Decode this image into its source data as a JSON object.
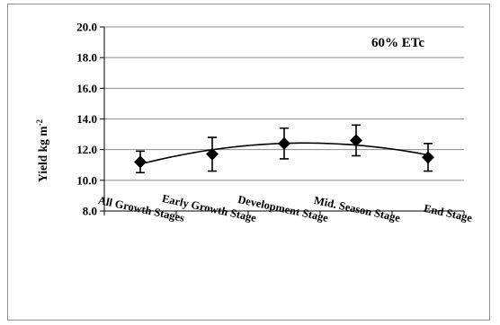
{
  "chart_data": {
    "type": "line",
    "title": "",
    "annotation": "60% ETc",
    "ylabel_main": "Yield kg m",
    "ylabel_sup": "-2",
    "xlabel": "",
    "categories": [
      "All Growth Stages",
      "Early Growth Stage",
      "Development Stage",
      "Mid. Season Stage",
      "End Stage"
    ],
    "series": [
      {
        "values": [
          11.2,
          11.7,
          12.4,
          12.6,
          11.5
        ],
        "error": [
          0.7,
          1.1,
          1.0,
          1.0,
          0.9
        ],
        "marker": "diamond",
        "trendline": "polynomial"
      }
    ],
    "ylim": [
      8.0,
      20.0
    ],
    "yticks": [
      "8.0",
      "10.0",
      "12.0",
      "14.0",
      "16.0",
      "18.0",
      "20.0"
    ],
    "grid": "horizontal",
    "legend": "none",
    "colors": {
      "series": "#000000",
      "grid": "#8c8c8c",
      "axis": "#000000",
      "frame": "#8c8c8c"
    }
  }
}
